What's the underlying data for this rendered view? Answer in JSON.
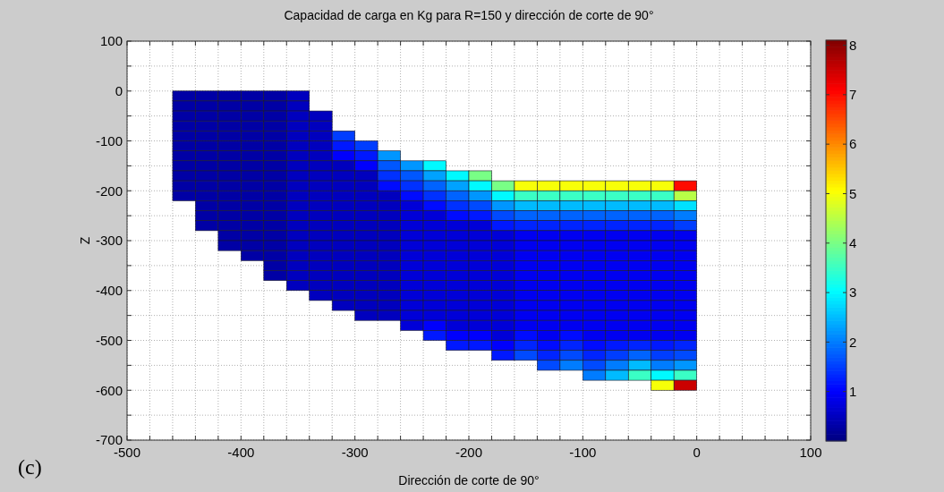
{
  "chart_data": {
    "type": "scatter",
    "title": "Capacidad de carga en Kg para R=150 y dirección de corte de 90°",
    "xlabel": "Dirección de corte de 90°",
    "ylabel": "Z",
    "annotations": [
      "(c)"
    ],
    "marker": "square",
    "grid": true,
    "xlim": [
      -500,
      100
    ],
    "ylim": [
      -700,
      100
    ],
    "xticks": [
      -500,
      {
        "value": -480,
        "label": null
      },
      {
        "value": -460,
        "label": null
      },
      {
        "value": -440,
        "label": null
      },
      {
        "value": -420,
        "label": null
      },
      -400,
      {
        "value": -380,
        "label": null
      },
      {
        "value": -360,
        "label": null
      },
      {
        "value": -340,
        "label": null
      },
      {
        "value": -320,
        "label": null
      },
      -300,
      {
        "value": -280,
        "label": null
      },
      {
        "value": -260,
        "label": null
      },
      {
        "value": -240,
        "label": null
      },
      {
        "value": -220,
        "label": null
      },
      -200,
      {
        "value": -180,
        "label": null
      },
      {
        "value": -160,
        "label": null
      },
      {
        "value": -140,
        "label": null
      },
      {
        "value": -120,
        "label": null
      },
      -100,
      {
        "value": -80,
        "label": null
      },
      {
        "value": -60,
        "label": null
      },
      {
        "value": -40,
        "label": null
      },
      {
        "value": -20,
        "label": null
      },
      0,
      {
        "value": 20,
        "label": null
      },
      {
        "value": 40,
        "label": null
      },
      {
        "value": 60,
        "label": null
      },
      {
        "value": 80,
        "label": null
      },
      100
    ],
    "yticks": [
      -700,
      {
        "value": -650,
        "label": null
      },
      -600,
      {
        "value": -550,
        "label": null
      },
      -500,
      {
        "value": -450,
        "label": null
      },
      -400,
      {
        "value": -350,
        "label": null
      },
      -300,
      {
        "value": -250,
        "label": null
      },
      -200,
      {
        "value": -150,
        "label": null
      },
      -100,
      {
        "value": -50,
        "label": null
      },
      0,
      {
        "value": 50,
        "label": null
      },
      100
    ],
    "clim": [
      0,
      8.1
    ],
    "cticks": [
      1,
      2,
      3,
      4,
      5,
      6,
      7,
      8
    ],
    "x": [
      -450,
      -450,
      -450,
      -450,
      -450,
      -450,
      -450,
      -450,
      -450,
      -450,
      -450,
      -430,
      -430,
      -430,
      -430,
      -430,
      -430,
      -430,
      -430,
      -430,
      -430,
      -430,
      -430,
      -430,
      -430,
      -410,
      -410,
      -410,
      -410,
      -410,
      -410,
      -410,
      -410,
      -410,
      -410,
      -410,
      -410,
      -410,
      -410,
      -410,
      -410,
      -390,
      -390,
      -390,
      -390,
      -390,
      -390,
      -390,
      -390,
      -390,
      -390,
      -390,
      -390,
      -390,
      -390,
      -390,
      -390,
      -390,
      -370,
      -370,
      -370,
      -370,
      -370,
      -370,
      -370,
      -370,
      -370,
      -370,
      -370,
      -370,
      -370,
      -370,
      -370,
      -370,
      -370,
      -370,
      -370,
      -350,
      -350,
      -350,
      -350,
      -350,
      -350,
      -350,
      -350,
      -350,
      -350,
      -350,
      -350,
      -350,
      -350,
      -350,
      -350,
      -350,
      -350,
      -350,
      -350,
      -330,
      -330,
      -330,
      -330,
      -330,
      -330,
      -330,
      -330,
      -330,
      -330,
      -330,
      -330,
      -330,
      -330,
      -330,
      -330,
      -330,
      -330,
      -330,
      -310,
      -310,
      -310,
      -310,
      -310,
      -310,
      -310,
      -310,
      -310,
      -310,
      -310,
      -310,
      -310,
      -310,
      -310,
      -310,
      -310,
      -310,
      -290,
      -290,
      -290,
      -290,
      -290,
      -290,
      -290,
      -290,
      -290,
      -290,
      -290,
      -290,
      -290,
      -290,
      -290,
      -290,
      -290,
      -290,
      -270,
      -270,
      -270,
      -270,
      -270,
      -270,
      -270,
      -270,
      -270,
      -270,
      -270,
      -270,
      -270,
      -270,
      -270,
      -270,
      -270,
      -250,
      -250,
      -250,
      -250,
      -250,
      -250,
      -250,
      -250,
      -250,
      -250,
      -250,
      -250,
      -250,
      -250,
      -250,
      -250,
      -250,
      -230,
      -230,
      -230,
      -230,
      -230,
      -230,
      -230,
      -230,
      -230,
      -230,
      -230,
      -230,
      -230,
      -230,
      -230,
      -230,
      -230,
      -230,
      -210,
      -210,
      -210,
      -210,
      -210,
      -210,
      -210,
      -210,
      -210,
      -210,
      -210,
      -210,
      -210,
      -210,
      -210,
      -210,
      -210,
      -210,
      -190,
      -190,
      -190,
      -190,
      -190,
      -190,
      -190,
      -190,
      -190,
      -190,
      -190,
      -190,
      -190,
      -190,
      -190,
      -190,
      -190,
      -190,
      -170,
      -170,
      -170,
      -170,
      -170,
      -170,
      -170,
      -170,
      -170,
      -170,
      -170,
      -170,
      -170,
      -170,
      -170,
      -170,
      -170,
      -170,
      -150,
      -150,
      -150,
      -150,
      -150,
      -150,
      -150,
      -150,
      -150,
      -150,
      -150,
      -150,
      -150,
      -150,
      -150,
      -150,
      -150,
      -150,
      -130,
      -130,
      -130,
      -130,
      -130,
      -130,
      -130,
      -130,
      -130,
      -130,
      -130,
      -130,
      -130,
      -130,
      -130,
      -130,
      -130,
      -130,
      -130,
      -110,
      -110,
      -110,
      -110,
      -110,
      -110,
      -110,
      -110,
      -110,
      -110,
      -110,
      -110,
      -110,
      -110,
      -110,
      -110,
      -110,
      -110,
      -110,
      -90,
      -90,
      -90,
      -90,
      -90,
      -90,
      -90,
      -90,
      -90,
      -90,
      -90,
      -90,
      -90,
      -90,
      -90,
      -90,
      -90,
      -90,
      -90,
      -90,
      -70,
      -70,
      -70,
      -70,
      -70,
      -70,
      -70,
      -70,
      -70,
      -70,
      -70,
      -70,
      -70,
      -70,
      -70,
      -70,
      -70,
      -70,
      -70,
      -70,
      -50,
      -50,
      -50,
      -50,
      -50,
      -50,
      -50,
      -50,
      -50,
      -50,
      -50,
      -50,
      -50,
      -50,
      -50,
      -50,
      -50,
      -50,
      -50,
      -50,
      -30,
      -30,
      -30,
      -30,
      -30,
      -30,
      -30,
      -30,
      -30,
      -30,
      -30,
      -30,
      -30,
      -30,
      -30,
      -30,
      -30,
      -30,
      -30,
      -30,
      -30,
      -10,
      -10,
      -10,
      -10,
      -10,
      -10,
      -10,
      -10,
      -10,
      -10,
      -10,
      -10,
      -10,
      -10,
      -10,
      -10,
      -10,
      -10,
      -10,
      -10,
      -10
    ],
    "values": [
      -10,
      -30,
      -50,
      -70,
      -90,
      -110,
      -130,
      -150,
      -170,
      -190,
      -210,
      -10,
      -30,
      -50,
      -70,
      -90,
      -110,
      -130,
      -150,
      -170,
      -190,
      -210,
      -230,
      -250,
      -270,
      -10,
      -30,
      -50,
      -70,
      -90,
      -110,
      -130,
      -150,
      -170,
      -190,
      -210,
      -230,
      -250,
      -270,
      -290,
      -310,
      -10,
      -30,
      -50,
      -70,
      -90,
      -110,
      -130,
      -150,
      -170,
      -190,
      -210,
      -230,
      -250,
      -270,
      -290,
      -310,
      -330,
      -10,
      -30,
      -50,
      -70,
      -90,
      -110,
      -130,
      -150,
      -170,
      -190,
      -210,
      -230,
      -250,
      -270,
      -290,
      -310,
      -330,
      -350,
      -370,
      -10,
      -30,
      -50,
      -70,
      -90,
      -110,
      -130,
      -150,
      -170,
      -190,
      -210,
      -230,
      -250,
      -270,
      -290,
      -310,
      -330,
      -350,
      -370,
      -390,
      -50,
      -70,
      -90,
      -110,
      -130,
      -150,
      -170,
      -190,
      -210,
      -230,
      -250,
      -270,
      -290,
      -310,
      -330,
      -350,
      -370,
      -390,
      -410,
      -90,
      -110,
      -130,
      -150,
      -170,
      -190,
      -210,
      -230,
      -250,
      -270,
      -290,
      -310,
      -330,
      -350,
      -370,
      -390,
      -410,
      -430,
      -110,
      -130,
      -150,
      -170,
      -190,
      -210,
      -230,
      -250,
      -270,
      -290,
      -310,
      -330,
      -350,
      -370,
      -390,
      -410,
      -430,
      -450,
      -130,
      -150,
      -170,
      -190,
      -210,
      -230,
      -250,
      -270,
      -290,
      -310,
      -330,
      -350,
      -370,
      -390,
      -410,
      -430,
      -450,
      -150,
      -170,
      -190,
      -210,
      -230,
      -250,
      -270,
      -290,
      -310,
      -330,
      -350,
      -370,
      -390,
      -410,
      -430,
      -450,
      -470,
      -150,
      -170,
      -190,
      -210,
      -230,
      -250,
      -270,
      -290,
      -310,
      -330,
      -350,
      -370,
      -390,
      -410,
      -430,
      -450,
      -470,
      -490,
      -170,
      -190,
      -210,
      -230,
      -250,
      -270,
      -290,
      -310,
      -330,
      -350,
      -370,
      -390,
      -410,
      -430,
      -450,
      -470,
      -490,
      -510,
      -170,
      -190,
      -210,
      -230,
      -250,
      -270,
      -290,
      -310,
      -330,
      -350,
      -370,
      -390,
      -410,
      -430,
      -450,
      -470,
      -490,
      -510,
      -190,
      -210,
      -230,
      -250,
      -270,
      -290,
      -310,
      -330,
      -350,
      -370,
      -390,
      -410,
      -430,
      -450,
      -470,
      -490,
      -510,
      -530,
      -190,
      -210,
      -230,
      -250,
      -270,
      -290,
      -310,
      -330,
      -350,
      -370,
      -390,
      -410,
      -430,
      -450,
      -470,
      -490,
      -510,
      -530,
      -190,
      -210,
      -230,
      -250,
      -270,
      -290,
      -310,
      -330,
      -350,
      -370,
      -390,
      -410,
      -430,
      -450,
      -470,
      -490,
      -510,
      -530,
      -550,
      -190,
      -210,
      -230,
      -250,
      -270,
      -290,
      -310,
      -330,
      -350,
      -370,
      -390,
      -410,
      -430,
      -450,
      -470,
      -490,
      -510,
      -530,
      -550,
      -190,
      -210,
      -230,
      -250,
      -270,
      -290,
      -310,
      -330,
      -350,
      -370,
      -390,
      -410,
      -430,
      -450,
      -470,
      -490,
      -510,
      -530,
      -550,
      -570,
      -190,
      -210,
      -230,
      -250,
      -270,
      -290,
      -310,
      -330,
      -350,
      -370,
      -390,
      -410,
      -430,
      -450,
      -470,
      -490,
      -510,
      -530,
      -550,
      -570,
      -190,
      -210,
      -230,
      -250,
      -270,
      -290,
      -310,
      -330,
      -350,
      -370,
      -390,
      -410,
      -430,
      -450,
      -470,
      -490,
      -510,
      -530,
      -550,
      -570,
      -190,
      -210,
      -230,
      -250,
      -270,
      -290,
      -310,
      -330,
      -350,
      -370,
      -390,
      -410,
      -430,
      -450,
      -470,
      -490,
      -510,
      -530,
      -550,
      -570,
      -590,
      -190,
      -210,
      -230,
      -250,
      -270,
      -290,
      -310,
      -330,
      -350,
      -370,
      -390,
      -410,
      -430,
      -450,
      -470,
      -490,
      -510,
      -530,
      -550,
      -570,
      -590
    ],
    "cvalues": [
      0.3,
      0.3,
      0.3,
      0.3,
      0.3,
      0.3,
      0.3,
      0.3,
      0.3,
      0.3,
      0.3,
      0.3,
      0.3,
      0.3,
      0.3,
      0.3,
      0.3,
      0.3,
      0.3,
      0.3,
      0.3,
      0.3,
      0.3,
      0.3,
      0.3,
      0.3,
      0.3,
      0.3,
      0.3,
      0.3,
      0.3,
      0.3,
      0.3,
      0.3,
      0.3,
      0.3,
      0.3,
      0.3,
      0.3,
      0.3,
      0.3,
      0.3,
      0.3,
      0.3,
      0.3,
      0.3,
      0.3,
      0.3,
      0.3,
      0.3,
      0.3,
      0.3,
      0.3,
      0.3,
      0.3,
      0.3,
      0.3,
      0.3,
      0.3,
      0.3,
      0.3,
      0.3,
      0.3,
      0.3,
      0.3,
      0.3,
      0.3,
      0.3,
      0.3,
      0.3,
      0.3,
      0.3,
      0.3,
      0.3,
      0.3,
      0.3,
      0.3,
      0.5,
      0.5,
      0.5,
      0.5,
      0.5,
      0.5,
      0.5,
      0.5,
      0.5,
      0.5,
      0.5,
      0.5,
      0.5,
      0.5,
      0.5,
      0.5,
      0.5,
      0.5,
      0.5,
      0.5,
      0.5,
      0.5,
      0.5,
      0.5,
      0.5,
      0.5,
      0.5,
      0.5,
      0.5,
      0.5,
      0.5,
      0.5,
      0.5,
      0.5,
      0.5,
      0.5,
      0.5,
      0.5,
      0.5,
      1.5,
      1.2,
      1,
      0.5,
      0.5,
      0.5,
      0.5,
      0.5,
      0.5,
      0.5,
      0.5,
      0.5,
      0.5,
      0.5,
      0.5,
      0.5,
      0.5,
      0.5,
      1.5,
      1.2,
      1,
      0.5,
      0.5,
      0.5,
      0.5,
      0.5,
      0.5,
      0.5,
      0.5,
      0.5,
      0.5,
      0.5,
      0.5,
      0.5,
      0.5,
      0.5,
      2.2,
      1.7,
      1.4,
      1.1,
      0.5,
      0.5,
      0.5,
      0.5,
      0.5,
      0.5,
      0.5,
      0.5,
      0.5,
      0.5,
      0.5,
      0.5,
      0.5,
      2.2,
      1.7,
      1.4,
      1.1,
      0.7,
      0.7,
      0.7,
      0.7,
      0.7,
      0.7,
      0.7,
      0.7,
      0.7,
      0.7,
      0.7,
      0.7,
      0.7,
      3,
      2.3,
      1.8,
      1.4,
      1.1,
      0.7,
      0.7,
      0.7,
      0.7,
      0.7,
      0.7,
      0.7,
      0.7,
      0.7,
      0.7,
      0.7,
      1,
      1.2,
      3,
      2.3,
      1.8,
      1.4,
      1.1,
      0.7,
      0.7,
      0.7,
      0.7,
      0.7,
      0.7,
      0.7,
      0.7,
      0.7,
      0.7,
      0.7,
      1,
      1.2,
      4,
      3,
      2.2,
      1.6,
      1.2,
      0.7,
      0.7,
      0.7,
      0.7,
      0.7,
      0.7,
      0.7,
      0.7,
      0.7,
      0.7,
      0.7,
      1,
      1.2,
      4,
      3,
      2.2,
      1.6,
      1.2,
      0.7,
      0.7,
      0.7,
      0.7,
      0.7,
      0.7,
      0.7,
      0.7,
      0.7,
      0.7,
      0.7,
      1,
      1.2,
      5,
      3.5,
      2.5,
      1.8,
      1.3,
      0.9,
      0.9,
      0.9,
      0.9,
      0.9,
      0.9,
      0.9,
      0.9,
      0.9,
      0.9,
      1.1,
      1.3,
      1.6,
      5,
      3.5,
      2.5,
      1.8,
      1.3,
      0.9,
      0.9,
      0.9,
      0.9,
      0.9,
      0.9,
      0.9,
      0.9,
      0.9,
      0.9,
      0.9,
      1.1,
      1.3,
      1.6,
      5,
      3.5,
      2.5,
      1.8,
      1.3,
      0.9,
      0.9,
      0.9,
      0.9,
      0.9,
      0.9,
      0.9,
      0.9,
      0.9,
      0.9,
      1.1,
      1.3,
      1.6,
      2,
      5,
      3.5,
      2.5,
      1.8,
      1.3,
      0.9,
      0.9,
      0.9,
      0.9,
      0.9,
      0.9,
      0.9,
      0.9,
      0.9,
      0.9,
      0.9,
      1.1,
      1.3,
      1.6,
      2,
      5,
      3.5,
      2.5,
      1.8,
      1.3,
      0.9,
      0.9,
      0.9,
      0.9,
      0.9,
      0.9,
      0.9,
      0.9,
      0.9,
      0.9,
      0.9,
      1.2,
      1.5,
      2,
      2.5,
      5,
      3.5,
      2.5,
      1.8,
      1.3,
      0.9,
      0.9,
      0.9,
      0.9,
      0.9,
      0.9,
      0.9,
      0.9,
      0.9,
      0.9,
      0.9,
      1.3,
      1.8,
      2.5,
      3.5,
      5,
      3.5,
      2.5,
      1.8,
      1.3,
      0.9,
      0.9,
      0.9,
      0.9,
      0.9,
      0.9,
      0.9,
      0.9,
      0.9,
      0.9,
      0.9,
      1.2,
      1.5,
      2,
      3,
      5,
      7,
      4.5,
      2.8,
      2,
      1.5,
      0.9,
      0.9,
      0.9,
      0.9,
      0.9,
      0.9,
      0.9,
      0.9,
      0.9,
      0.9,
      0.9,
      1.3,
      1.6,
      2.2,
      3.5,
      7.5
    ]
  }
}
